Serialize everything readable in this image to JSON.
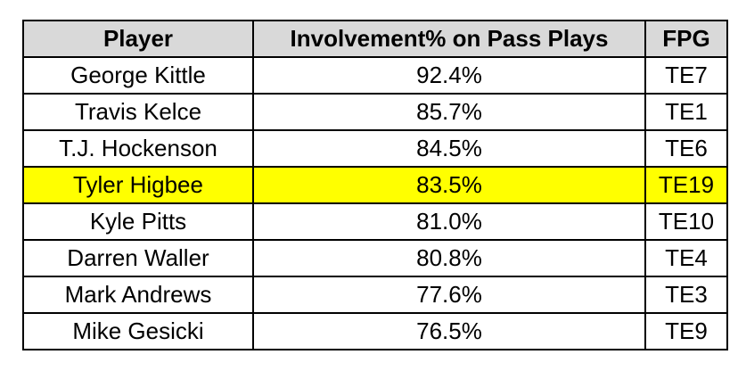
{
  "chart_data": {
    "type": "table",
    "columns": [
      "Player",
      "Involvement% on Pass Plays",
      "FPG"
    ],
    "rows": [
      {
        "player": "George Kittle",
        "involvement": "92.4%",
        "fpg": "TE7",
        "highlight": false
      },
      {
        "player": "Travis Kelce",
        "involvement": "85.7%",
        "fpg": "TE1",
        "highlight": false
      },
      {
        "player": "T.J. Hockenson",
        "involvement": "84.5%",
        "fpg": "TE6",
        "highlight": false
      },
      {
        "player": "Tyler Higbee",
        "involvement": "83.5%",
        "fpg": "TE19",
        "highlight": true
      },
      {
        "player": "Kyle Pitts",
        "involvement": "81.0%",
        "fpg": "TE10",
        "highlight": false
      },
      {
        "player": "Darren Waller",
        "involvement": "80.8%",
        "fpg": "TE4",
        "highlight": false
      },
      {
        "player": "Mark Andrews",
        "involvement": "77.6%",
        "fpg": "TE3",
        "highlight": false
      },
      {
        "player": "Mike Gesicki",
        "involvement": "76.5%",
        "fpg": "TE9",
        "highlight": false
      }
    ],
    "header_color": "#d9d9d9",
    "highlight_color": "#ffff00"
  }
}
